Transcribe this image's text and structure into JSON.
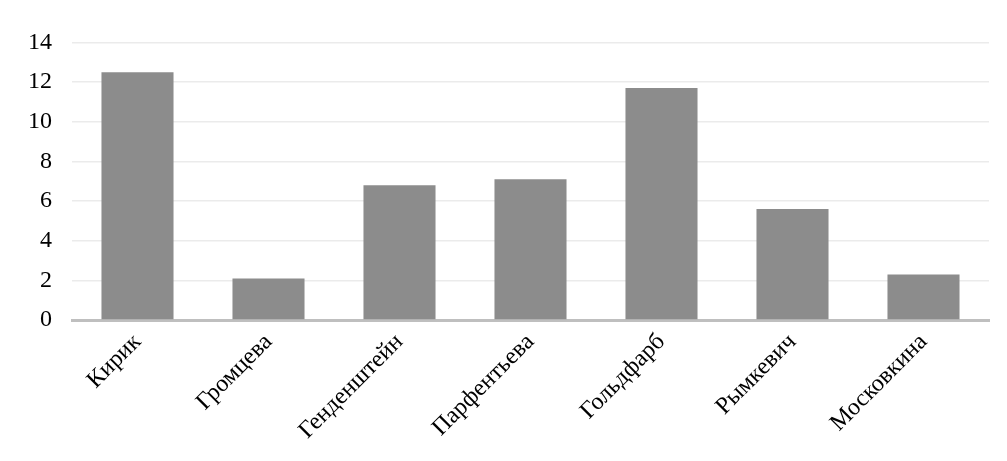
{
  "chart_data": {
    "type": "bar",
    "categories": [
      "Кирик",
      "Громцева",
      "Генденштейн",
      "Парфентьева",
      "Гольдфарб",
      "Рымкевич",
      "Московкина"
    ],
    "values": [
      12.5,
      2.1,
      6.8,
      7.1,
      11.7,
      5.6,
      2.3
    ],
    "color": "#8c8c8c",
    "ylim": [
      0,
      14
    ],
    "yticks": [
      0,
      2,
      4,
      6,
      8,
      10,
      12,
      14
    ],
    "grid": "y",
    "legend": false
  }
}
